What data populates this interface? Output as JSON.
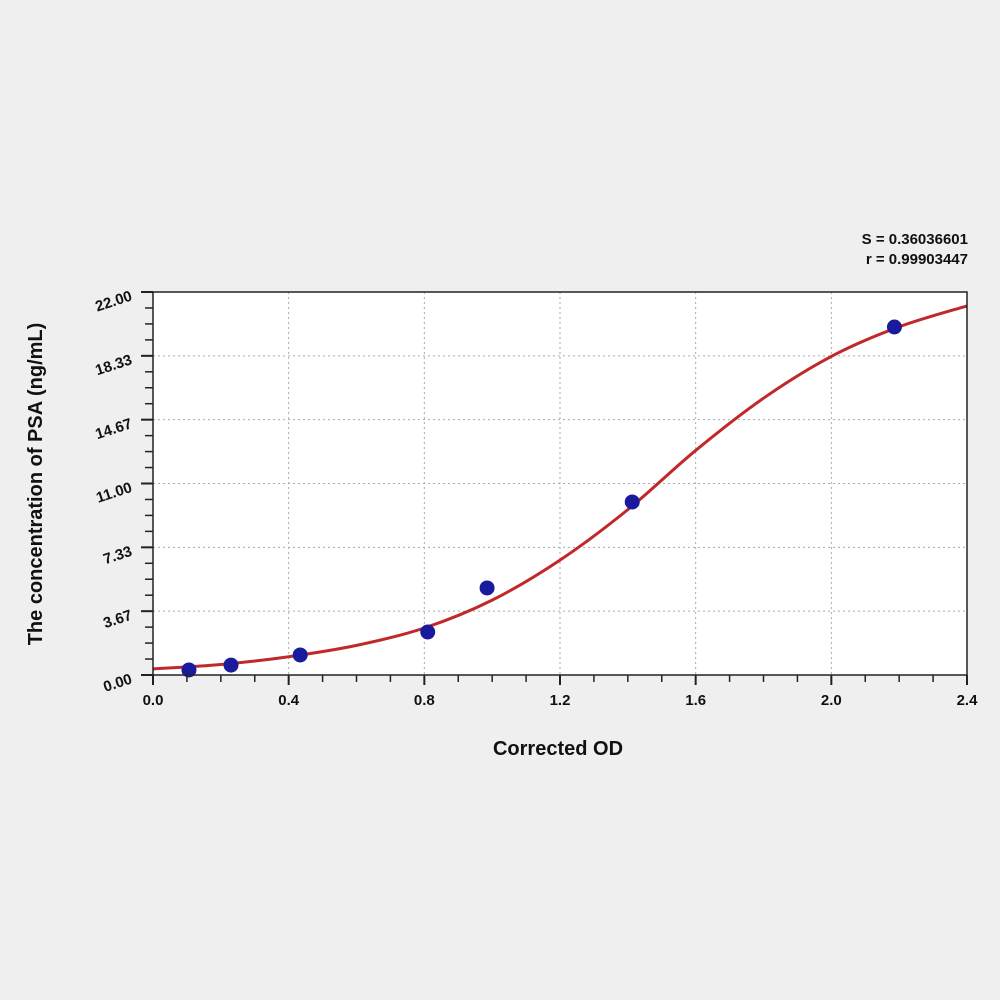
{
  "chart_data": {
    "type": "scatter",
    "xlabel": "Corrected OD",
    "ylabel": "The concentration of PSA (ng/mL)",
    "xlim": [
      0,
      2.4
    ],
    "ylim": [
      0,
      22
    ],
    "x_ticks": [
      "0.0",
      "0.4",
      "0.8",
      "1.2",
      "1.6",
      "2.0",
      "2.4"
    ],
    "y_ticks": [
      "0.00",
      "3.67",
      "7.33",
      "11.00",
      "14.67",
      "18.33",
      "22.00"
    ],
    "grid": true,
    "annotations": {
      "s": "S = 0.36036601",
      "r": "r = 0.99903447"
    },
    "points": {
      "color": "#1a1a9c",
      "x": [
        0.106,
        0.23,
        0.434,
        0.81,
        0.985,
        1.413,
        2.186
      ],
      "y": [
        0.29,
        0.57,
        1.15,
        2.47,
        5.0,
        9.94,
        19.99
      ]
    },
    "fit_curve": {
      "color": "#c0282a",
      "x": [
        0,
        0.2,
        0.4,
        0.6,
        0.8,
        1.0,
        1.2,
        1.4,
        1.6,
        1.8,
        2.0,
        2.2,
        2.4
      ],
      "y": [
        0.35,
        0.6,
        1.05,
        1.7,
        2.7,
        4.3,
        6.6,
        9.5,
        12.9,
        15.9,
        18.3,
        20.0,
        21.2
      ]
    }
  }
}
